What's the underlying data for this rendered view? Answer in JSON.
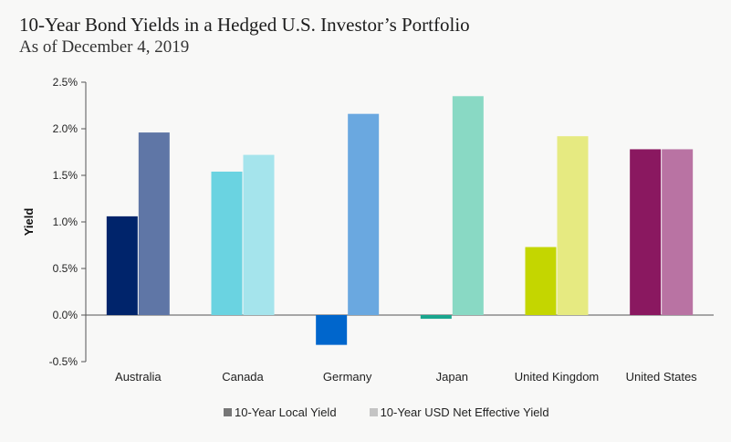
{
  "title": "10-Year Bond Yields in a Hedged U.S. Investor’s Portfolio",
  "subtitle": "As of December 4, 2019",
  "legend": [
    {
      "label": "10-Year Local Yield",
      "color": "#777777"
    },
    {
      "label": "10-Year USD Net Effective Yield",
      "color": "#c4c4c4"
    }
  ],
  "chart_data": {
    "type": "bar",
    "title": "10-Year Bond Yields in a Hedged U.S. Investor’s Portfolio",
    "subtitle": "As of December 4, 2019",
    "xlabel": "",
    "ylabel": "Yield",
    "ylim": [
      -0.5,
      2.5
    ],
    "yticks": [
      -0.5,
      0.0,
      0.5,
      1.0,
      1.5,
      2.0,
      2.5
    ],
    "ytick_labels": [
      "-0.5%",
      "0.0%",
      "0.5%",
      "1.0%",
      "1.5%",
      "2.0%",
      "2.5%"
    ],
    "categories": [
      "Australia",
      "Canada",
      "Germany",
      "Japan",
      "United Kingdom",
      "United States"
    ],
    "series": [
      {
        "name": "10-Year Local Yield",
        "values": [
          1.06,
          1.54,
          -0.32,
          -0.04,
          0.73,
          1.78
        ]
      },
      {
        "name": "10-Year USD Net Effective Yield",
        "values": [
          1.96,
          1.72,
          2.16,
          2.35,
          1.92,
          1.78
        ]
      }
    ],
    "colors": [
      [
        "#00246b",
        "#5f76a6"
      ],
      [
        "#6ad3e1",
        "#a5e4ec"
      ],
      [
        "#0066cc",
        "#6aa8e0"
      ],
      [
        "#1aa68e",
        "#89d9c4"
      ],
      [
        "#c4d600",
        "#e6ea81"
      ],
      [
        "#8a1860",
        "#b973a3"
      ]
    ],
    "legend_position": "bottom",
    "grid": false
  }
}
